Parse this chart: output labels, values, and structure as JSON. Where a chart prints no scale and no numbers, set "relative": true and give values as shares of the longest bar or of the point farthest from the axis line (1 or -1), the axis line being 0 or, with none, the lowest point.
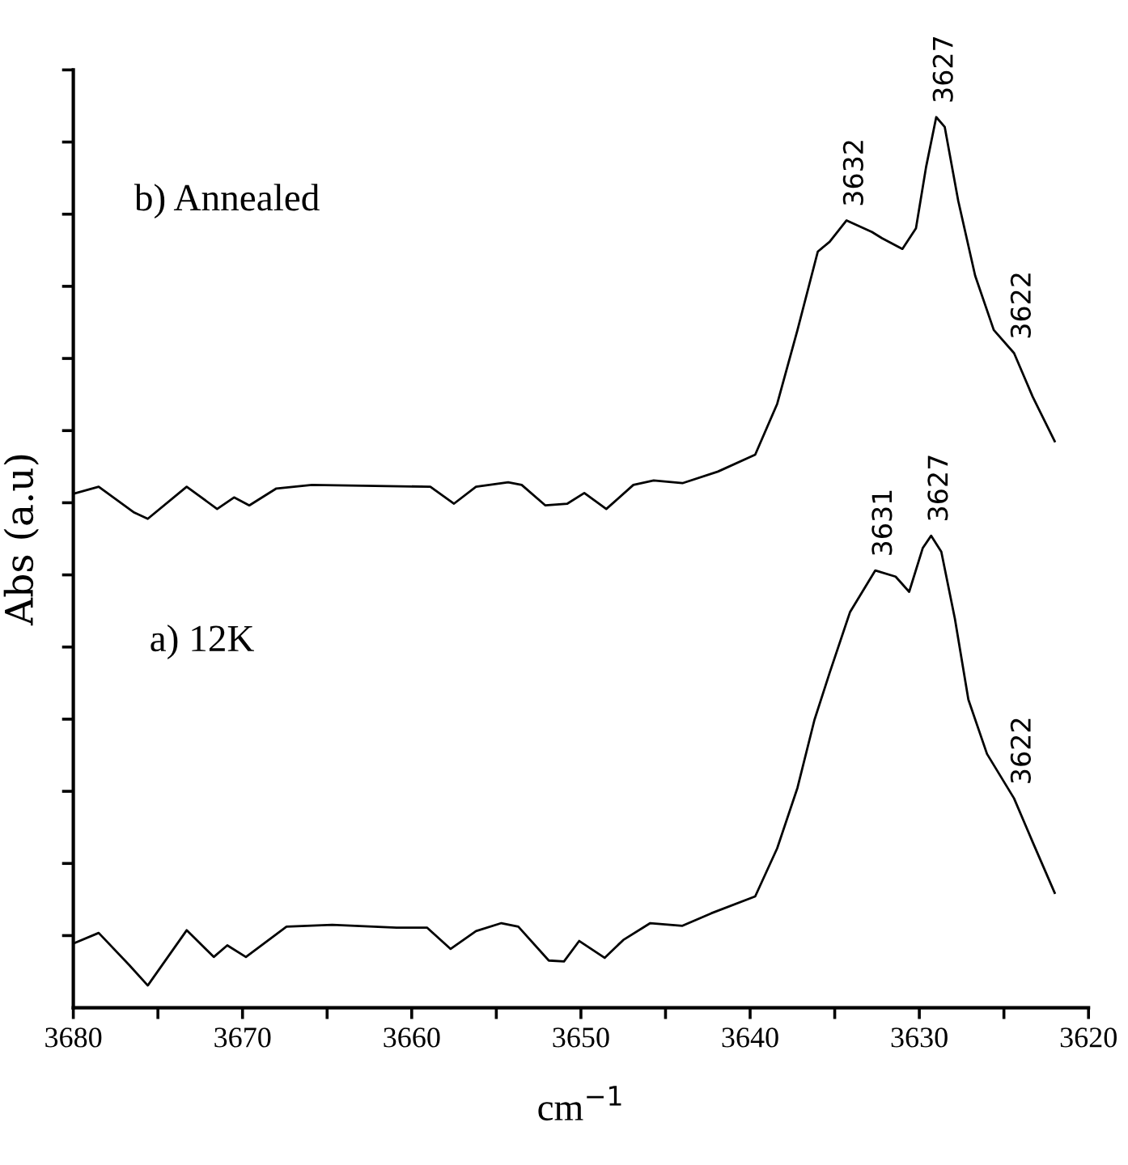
{
  "chart_data": {
    "type": "line",
    "relative": true,
    "xlabel": "cm$^{−1}$",
    "ylabel": "Abs (a.u)",
    "xlim": [
      3680,
      3620
    ],
    "xticks": [
      3680,
      {
        "value": 3675,
        "label": null
      },
      3670,
      {
        "value": 3665,
        "label": null
      },
      3660,
      {
        "value": 3655,
        "label": null
      },
      3650,
      {
        "value": 3645,
        "label": null
      },
      3640,
      {
        "value": 3635,
        "label": null
      },
      3630,
      {
        "value": 3625,
        "label": null
      },
      3620
    ],
    "grid": false,
    "marker": "none",
    "line_style": "solid",
    "series": [
      {
        "color": "#000000",
        "x": [
          3680.0,
          3678.5,
          3676.4,
          3675.6,
          3673.3,
          3671.5,
          3670.5,
          3669.6,
          3668.0,
          3665.9,
          3658.9,
          3657.5,
          3656.2,
          3654.3,
          3653.5,
          3652.1,
          3650.8,
          3649.8,
          3648.5,
          3646.9,
          3645.7,
          3644.0,
          3641.9,
          3639.7,
          3638.4,
          3637.2,
          3636.0,
          3635.3,
          3634.3,
          3632.8,
          3632.2,
          3631.0,
          3630.2,
          3629.6,
          3629.0,
          3628.5,
          3627.7,
          3626.7,
          3625.6,
          3624.4,
          3623.3,
          3622.0
        ],
        "values": [
          0.577,
          0.585,
          0.556,
          0.549,
          0.585,
          0.56,
          0.573,
          0.564,
          0.583,
          0.587,
          0.585,
          0.566,
          0.585,
          0.59,
          0.587,
          0.564,
          0.566,
          0.578,
          0.56,
          0.587,
          0.592,
          0.589,
          0.602,
          0.621,
          0.678,
          0.761,
          0.849,
          0.86,
          0.884,
          0.871,
          0.864,
          0.852,
          0.875,
          0.944,
          1.0,
          0.989,
          0.906,
          0.822,
          0.761,
          0.735,
          0.686,
          0.636
        ]
      },
      {
        "color": "#000000",
        "x": [
          3680.0,
          3678.5,
          3676.7,
          3675.6,
          3673.3,
          3671.7,
          3670.9,
          3669.8,
          3667.4,
          3664.7,
          3660.9,
          3659.1,
          3657.7,
          3656.2,
          3654.7,
          3653.7,
          3651.9,
          3651.0,
          3650.1,
          3648.6,
          3647.5,
          3645.9,
          3644.0,
          3642.3,
          3639.7,
          3638.4,
          3637.2,
          3636.2,
          3635.3,
          3634.1,
          3632.6,
          3631.4,
          3630.6,
          3629.8,
          3629.3,
          3628.7,
          3627.9,
          3627.1,
          3626.0,
          3624.4,
          3623.3,
          3622.0
        ],
        "values": [
          0.072,
          0.084,
          0.048,
          0.025,
          0.087,
          0.057,
          0.07,
          0.057,
          0.091,
          0.093,
          0.09,
          0.09,
          0.066,
          0.086,
          0.095,
          0.091,
          0.053,
          0.052,
          0.075,
          0.056,
          0.076,
          0.095,
          0.092,
          0.106,
          0.125,
          0.179,
          0.247,
          0.323,
          0.376,
          0.444,
          0.491,
          0.484,
          0.467,
          0.516,
          0.53,
          0.512,
          0.437,
          0.346,
          0.285,
          0.235,
          0.186,
          0.129
        ]
      }
    ],
    "annotations": [
      "b) Annealed",
      "a) 12K",
      {
        "text": "3632",
        "x": 3634.3,
        "y": 0.884
      },
      {
        "text": "3627",
        "x": 3629.0,
        "y": 1.0
      },
      {
        "text": "3622",
        "x": 3624.4,
        "y": 0.735
      },
      {
        "text": "3631",
        "x": 3632.6,
        "y": 0.491
      },
      {
        "text": "3627",
        "x": 3629.3,
        "y": 0.53
      },
      {
        "text": "3622",
        "x": 3624.4,
        "y": 0.235
      }
    ]
  }
}
